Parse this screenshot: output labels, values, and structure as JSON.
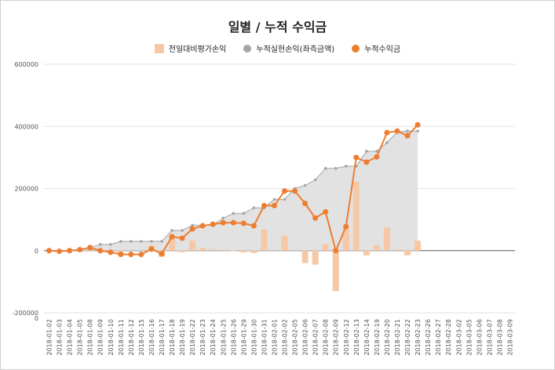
{
  "chart_data": {
    "type": "bar+line",
    "title": "일별 / 누적 수익금",
    "legend": [
      {
        "name": "전일대비평가손익",
        "color": "#f6c8a6",
        "kind": "bar"
      },
      {
        "name": "누적실현손익(좌측금액)",
        "color": "#a5a5a5",
        "kind": "area"
      },
      {
        "name": "누적수익금",
        "color": "#ed7d31",
        "kind": "line"
      }
    ],
    "y_tick_labels": [
      "600000",
      "400000",
      "200000",
      "0",
      "-200000"
    ],
    "ylim": [
      -200000,
      600000
    ],
    "categories": [
      "2018-01-02",
      "2018-01-03",
      "2018-01-04",
      "2018-01-05",
      "2018-01-08",
      "2018-01-09",
      "2018-01-10",
      "2018-01-11",
      "2018-01-12",
      "2018-01-15",
      "2018-01-16",
      "2018-01-17",
      "2018-01-18",
      "2018-01-19",
      "2018-01-22",
      "2018-01-23",
      "2018-01-24",
      "2018-01-25",
      "2018-01-26",
      "2018-01-29",
      "2018-01-30",
      "2018-01-31",
      "2018-02-01",
      "2018-02-02",
      "2018-02-05",
      "2018-02-06",
      "2018-02-07",
      "2018-02-08",
      "2018-02-09",
      "2018-02-12",
      "2018-02-13",
      "2018-02-14",
      "2018-02-19",
      "2018-02-20",
      "2018-02-21",
      "2018-02-22",
      "2018-02-23",
      "2018-02-26",
      "2018-02-27",
      "2018-02-28",
      "2018-03-02",
      "2018-03-05",
      "2018-03-06",
      "2018-03-07",
      "2018-03-08",
      "2018-03-09"
    ],
    "daily_pnl": [
      0,
      0,
      0,
      0,
      8000,
      -3000,
      -5000,
      -8000,
      0,
      0,
      18000,
      -20000,
      45000,
      -5000,
      32000,
      8000,
      5000,
      3000,
      -2000,
      -6000,
      -8000,
      68000,
      0,
      48000,
      0,
      -40000,
      -45000,
      20000,
      -130000,
      75000,
      222000,
      -15000,
      18000,
      75000,
      3000,
      -15000,
      32000,
      null,
      null,
      null,
      null,
      null,
      null,
      null,
      null,
      null
    ],
    "realized_cum": [
      0,
      0,
      0,
      5000,
      10000,
      20000,
      20000,
      30000,
      30000,
      30000,
      30000,
      30000,
      65000,
      65000,
      82000,
      82000,
      82000,
      105000,
      120000,
      120000,
      138000,
      138000,
      165000,
      165000,
      200000,
      210000,
      228000,
      265000,
      265000,
      272000,
      272000,
      320000,
      320000,
      348000,
      382000,
      385000,
      385000,
      null,
      null,
      null,
      null,
      null,
      null,
      null,
      null,
      null
    ],
    "cumulative": [
      0,
      -2000,
      0,
      3000,
      10000,
      0,
      -5000,
      -12000,
      -12000,
      -12000,
      5000,
      -10000,
      45000,
      40000,
      70000,
      80000,
      85000,
      90000,
      90000,
      88000,
      80000,
      145000,
      145000,
      192000,
      192000,
      152000,
      105000,
      125000,
      0,
      78000,
      300000,
      285000,
      302000,
      380000,
      385000,
      370000,
      405000,
      null,
      null,
      null,
      null,
      null,
      null,
      null,
      null,
      null
    ]
  }
}
